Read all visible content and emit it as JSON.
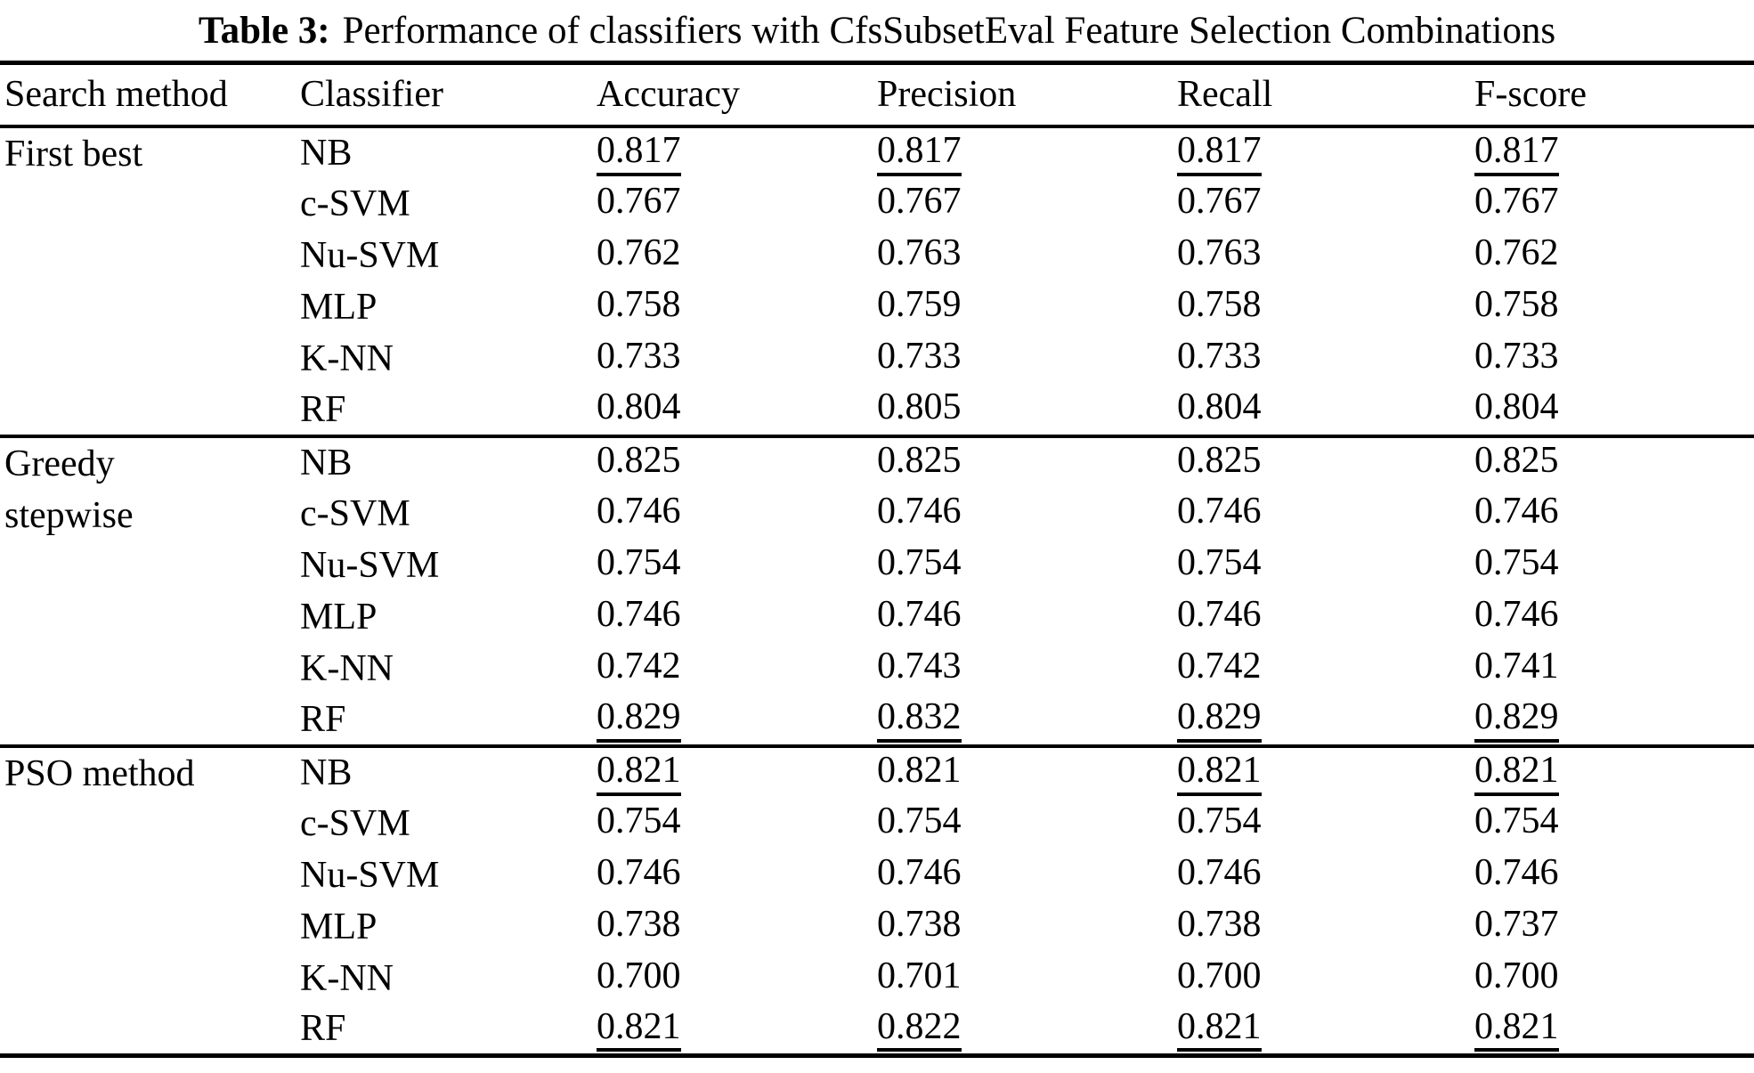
{
  "title": {
    "label": "Table 3:",
    "text": "Performance of classifiers with CfsSubsetEval Feature Selection Combinations"
  },
  "table": {
    "columns": [
      "Search method",
      "Classifier",
      "Accuracy",
      "Precision",
      "Recall",
      "F-score"
    ],
    "metric_keys": [
      "accuracy",
      "precision",
      "recall",
      "fscore"
    ],
    "sections": [
      {
        "search_method": "First best",
        "rows": [
          {
            "classifier": "NB",
            "accuracy": "0.817",
            "precision": "0.817",
            "recall": "0.817",
            "fscore": "0.817",
            "underline": [
              true,
              true,
              true,
              true
            ]
          },
          {
            "classifier": "c-SVM",
            "accuracy": "0.767",
            "precision": "0.767",
            "recall": "0.767",
            "fscore": "0.767",
            "underline": [
              false,
              false,
              false,
              false
            ]
          },
          {
            "classifier": "Nu-SVM",
            "accuracy": "0.762",
            "precision": "0.763",
            "recall": "0.763",
            "fscore": "0.762",
            "underline": [
              false,
              false,
              false,
              false
            ]
          },
          {
            "classifier": "MLP",
            "accuracy": "0.758",
            "precision": "0.759",
            "recall": "0.758",
            "fscore": "0.758",
            "underline": [
              false,
              false,
              false,
              false
            ]
          },
          {
            "classifier": "K-NN",
            "accuracy": "0.733",
            "precision": "0.733",
            "recall": "0.733",
            "fscore": "0.733",
            "underline": [
              false,
              false,
              false,
              false
            ]
          },
          {
            "classifier": "RF",
            "accuracy": "0.804",
            "precision": "0.805",
            "recall": "0.804",
            "fscore": "0.804",
            "underline": [
              false,
              false,
              false,
              false
            ]
          }
        ]
      },
      {
        "search_method": "Greedy\nstepwise",
        "rows": [
          {
            "classifier": "NB",
            "accuracy": "0.825",
            "precision": "0.825",
            "recall": "0.825",
            "fscore": "0.825",
            "underline": [
              false,
              false,
              false,
              false
            ]
          },
          {
            "classifier": "c-SVM",
            "accuracy": "0.746",
            "precision": "0.746",
            "recall": "0.746",
            "fscore": "0.746",
            "underline": [
              false,
              false,
              false,
              false
            ]
          },
          {
            "classifier": "Nu-SVM",
            "accuracy": "0.754",
            "precision": "0.754",
            "recall": "0.754",
            "fscore": "0.754",
            "underline": [
              false,
              false,
              false,
              false
            ]
          },
          {
            "classifier": "MLP",
            "accuracy": "0.746",
            "precision": "0.746",
            "recall": "0.746",
            "fscore": "0.746",
            "underline": [
              false,
              false,
              false,
              false
            ]
          },
          {
            "classifier": "K-NN",
            "accuracy": "0.742",
            "precision": "0.743",
            "recall": "0.742",
            "fscore": "0.741",
            "underline": [
              false,
              false,
              false,
              false
            ]
          },
          {
            "classifier": "RF",
            "accuracy": "0.829",
            "precision": "0.832",
            "recall": "0.829",
            "fscore": "0.829",
            "underline": [
              true,
              true,
              true,
              true
            ]
          }
        ]
      },
      {
        "search_method": "PSO method",
        "rows": [
          {
            "classifier": "NB",
            "accuracy": "0.821",
            "precision": "0.821",
            "recall": "0.821",
            "fscore": "0.821",
            "underline": [
              true,
              false,
              true,
              true
            ]
          },
          {
            "classifier": "c-SVM",
            "accuracy": "0.754",
            "precision": "0.754",
            "recall": "0.754",
            "fscore": "0.754",
            "underline": [
              false,
              false,
              false,
              false
            ]
          },
          {
            "classifier": "Nu-SVM",
            "accuracy": "0.746",
            "precision": "0.746",
            "recall": "0.746",
            "fscore": "0.746",
            "underline": [
              false,
              false,
              false,
              false
            ]
          },
          {
            "classifier": "MLP",
            "accuracy": "0.738",
            "precision": "0.738",
            "recall": "0.738",
            "fscore": "0.737",
            "underline": [
              false,
              false,
              false,
              false
            ]
          },
          {
            "classifier": "K-NN",
            "accuracy": "0.700",
            "precision": "0.701",
            "recall": "0.700",
            "fscore": "0.700",
            "underline": [
              false,
              false,
              false,
              false
            ]
          },
          {
            "classifier": "RF",
            "accuracy": "0.821",
            "precision": "0.822",
            "recall": "0.821",
            "fscore": "0.821",
            "underline": [
              true,
              true,
              true,
              true
            ]
          }
        ]
      }
    ]
  }
}
